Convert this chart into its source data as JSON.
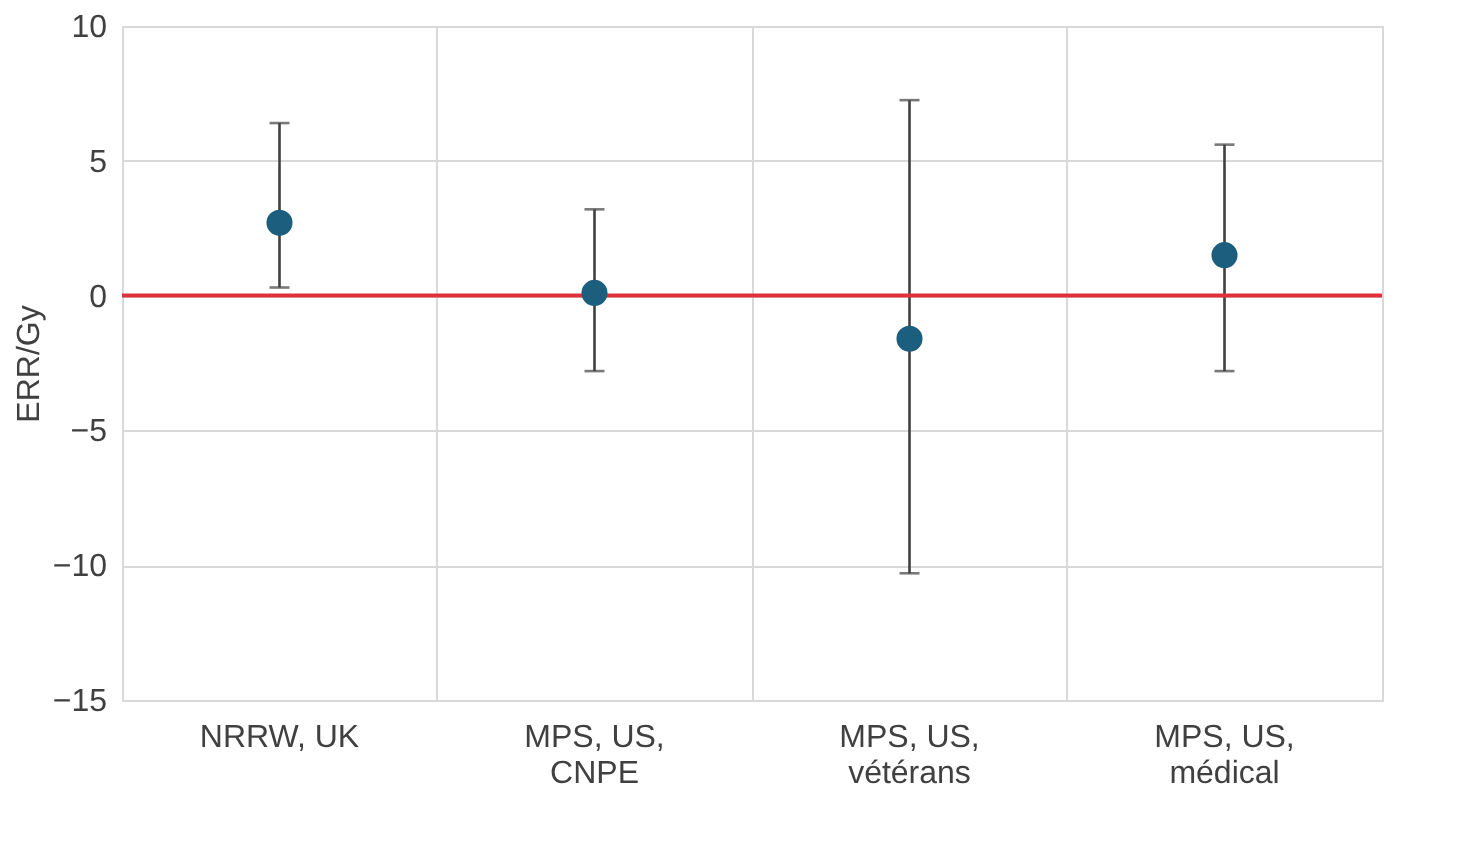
{
  "chart_data": {
    "type": "scatter",
    "ylabel": "ERR/Gy",
    "categories": [
      "NRRW, UK",
      "MPS, US,\nCNPE",
      "MPS, US,\nvétérans",
      "MPS, US,\nmédical"
    ],
    "values": [
      2.7,
      0.1,
      -1.6,
      1.5
    ],
    "errors": [
      [
        0.3,
        6.4
      ],
      [
        -2.8,
        3.2
      ],
      [
        -10.3,
        7.25
      ],
      [
        -2.8,
        5.6
      ]
    ],
    "color": "#1b5e7e",
    "marker": "circle",
    "ylim": [
      -15,
      10
    ],
    "yticks": [
      -15,
      -10,
      -5,
      0,
      5,
      10
    ],
    "grid": true,
    "ref_lines": [
      {
        "axis": "y",
        "value": 0,
        "color": "#e0303c"
      }
    ]
  }
}
